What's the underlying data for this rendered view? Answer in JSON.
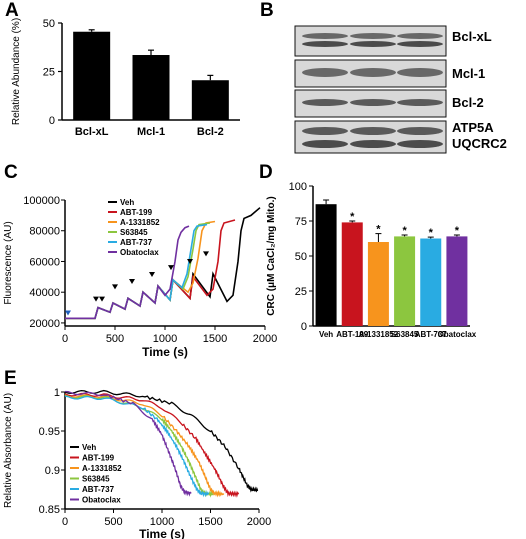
{
  "panels": {
    "a": "A",
    "b": "B",
    "c": "C",
    "d": "D",
    "e": "E"
  },
  "blot": {
    "labels": [
      "Bcl-xL",
      "Mcl-1",
      "Bcl-2",
      "ATP5A",
      "UQCRC2"
    ]
  },
  "colors": {
    "Veh": "#000000",
    "ABT-199": "#c8141e",
    "A-1331852": "#f7941d",
    "S63845": "#8cc63f",
    "ABT-737": "#29abe2",
    "Obatoclax": "#7030a0"
  },
  "chart_data": [
    {
      "id": "A",
      "type": "bar",
      "categories": [
        "Bcl-xL",
        "Mcl-1",
        "Bcl-2"
      ],
      "values": [
        45.5,
        33.5,
        20.5
      ],
      "errors": [
        1.0,
        2.5,
        2.5
      ],
      "ylabel": "Relative Abundance (%)",
      "ylim": [
        0,
        50
      ],
      "yticks": [
        0,
        25,
        50
      ]
    },
    {
      "id": "C",
      "type": "line",
      "xlabel": "Time (s)",
      "ylabel": "Fluorescence (AU)",
      "xlim": [
        0,
        2000
      ],
      "ylim": [
        18000,
        100000
      ],
      "xticks": [
        0,
        500,
        1000,
        1500,
        2000
      ],
      "yticks": [
        20000,
        40000,
        60000,
        80000,
        100000
      ],
      "series": [
        {
          "name": "Veh",
          "points": [
            [
              0,
              23000
            ],
            [
              300,
              23000
            ],
            [
              330,
              30000
            ],
            [
              450,
              27000
            ],
            [
              480,
              33000
            ],
            [
              600,
              29000
            ],
            [
              630,
              36000
            ],
            [
              750,
              31000
            ],
            [
              780,
              40000
            ],
            [
              900,
              33000
            ],
            [
              930,
              44000
            ],
            [
              1050,
              35000
            ],
            [
              1080,
              48000
            ],
            [
              1250,
              36000
            ],
            [
              1280,
              52000
            ],
            [
              1450,
              37000
            ],
            [
              1480,
              52000
            ],
            [
              1620,
              34000
            ],
            [
              1680,
              38000
            ],
            [
              1730,
              60000
            ],
            [
              1760,
              80000
            ],
            [
              1790,
              88000
            ],
            [
              1860,
              90000
            ],
            [
              1950,
              95000
            ]
          ]
        },
        {
          "name": "ABT-199",
          "points": [
            [
              0,
              23000
            ],
            [
              300,
              23000
            ],
            [
              330,
              30000
            ],
            [
              450,
              27000
            ],
            [
              480,
              33000
            ],
            [
              600,
              29000
            ],
            [
              630,
              36000
            ],
            [
              750,
              31000
            ],
            [
              780,
              40000
            ],
            [
              900,
              33000
            ],
            [
              930,
              44000
            ],
            [
              1050,
              35000
            ],
            [
              1080,
              48000
            ],
            [
              1250,
              36000
            ],
            [
              1280,
              50000
            ],
            [
              1420,
              38000
            ],
            [
              1480,
              42000
            ],
            [
              1530,
              60000
            ],
            [
              1560,
              80000
            ],
            [
              1590,
              85000
            ],
            [
              1700,
              87000
            ]
          ]
        },
        {
          "name": "A-1331852",
          "points": [
            [
              0,
              23000
            ],
            [
              300,
              23000
            ],
            [
              330,
              30000
            ],
            [
              450,
              27000
            ],
            [
              480,
              33000
            ],
            [
              600,
              29000
            ],
            [
              630,
              36000
            ],
            [
              750,
              31000
            ],
            [
              780,
              40000
            ],
            [
              900,
              33000
            ],
            [
              930,
              44000
            ],
            [
              1050,
              35000
            ],
            [
              1080,
              48000
            ],
            [
              1230,
              40000
            ],
            [
              1280,
              46000
            ],
            [
              1330,
              62000
            ],
            [
              1370,
              80000
            ],
            [
              1410,
              85000
            ],
            [
              1500,
              86000
            ]
          ]
        },
        {
          "name": "S63845",
          "points": [
            [
              0,
              23000
            ],
            [
              300,
              23000
            ],
            [
              330,
              30000
            ],
            [
              450,
              27000
            ],
            [
              480,
              33000
            ],
            [
              600,
              29000
            ],
            [
              630,
              36000
            ],
            [
              750,
              31000
            ],
            [
              780,
              40000
            ],
            [
              900,
              33000
            ],
            [
              930,
              44000
            ],
            [
              1050,
              35000
            ],
            [
              1080,
              48000
            ],
            [
              1180,
              42000
            ],
            [
              1230,
              50000
            ],
            [
              1280,
              68000
            ],
            [
              1310,
              80000
            ],
            [
              1340,
              84000
            ],
            [
              1450,
              85000
            ]
          ]
        },
        {
          "name": "ABT-737",
          "points": [
            [
              0,
              23000
            ],
            [
              300,
              23000
            ],
            [
              330,
              30000
            ],
            [
              450,
              27000
            ],
            [
              480,
              33000
            ],
            [
              600,
              29000
            ],
            [
              630,
              36000
            ],
            [
              750,
              31000
            ],
            [
              780,
              40000
            ],
            [
              900,
              33000
            ],
            [
              930,
              44000
            ],
            [
              1050,
              35000
            ],
            [
              1080,
              48000
            ],
            [
              1170,
              43000
            ],
            [
              1220,
              52000
            ],
            [
              1260,
              68000
            ],
            [
              1290,
              80000
            ],
            [
              1320,
              83000
            ],
            [
              1420,
              84000
            ]
          ]
        },
        {
          "name": "Obatoclax",
          "points": [
            [
              0,
              23000
            ],
            [
              300,
              23000
            ],
            [
              330,
              30000
            ],
            [
              450,
              27000
            ],
            [
              480,
              33000
            ],
            [
              600,
              29000
            ],
            [
              630,
              36000
            ],
            [
              750,
              31000
            ],
            [
              780,
              40000
            ],
            [
              900,
              33000
            ],
            [
              930,
              44000
            ],
            [
              1000,
              38000
            ],
            [
              1050,
              42000
            ],
            [
              1100,
              60000
            ],
            [
              1130,
              74000
            ],
            [
              1160,
              79000
            ],
            [
              1200,
              82000
            ],
            [
              1240,
              83000
            ]
          ]
        }
      ],
      "markers": {
        "blue": [
          30
        ],
        "black": [
          310,
          370,
          500,
          670,
          870,
          1060,
          1250,
          1410
        ]
      }
    },
    {
      "id": "D",
      "type": "bar",
      "categories": [
        "Veh",
        "ABT-199",
        "A-1331852",
        "S63845",
        "ABT-737",
        "Obatoclax"
      ],
      "values": [
        87,
        74,
        60,
        64,
        62.5,
        64
      ],
      "errors": [
        3,
        1,
        6,
        1,
        1,
        1
      ],
      "significant": [
        false,
        true,
        true,
        true,
        true,
        true
      ],
      "annotation": "*",
      "ylabel": "CRC (μM CaCl₂/mg Mito.)",
      "ylim": [
        0,
        100
      ],
      "yticks": [
        0,
        25,
        50,
        75,
        100
      ]
    },
    {
      "id": "E",
      "type": "line",
      "xlabel": "Time (s)",
      "ylabel": "Relative Absorbance (AU)",
      "xlim": [
        0,
        2000
      ],
      "ylim": [
        0.85,
        1.0
      ],
      "xticks": [
        0,
        500,
        1000,
        1500,
        2000
      ],
      "yticks": [
        0.85,
        0.9,
        0.95,
        1
      ],
      "series": [
        {
          "name": "Veh",
          "points": [
            [
              0,
              1.0
            ],
            [
              400,
              1.0
            ],
            [
              800,
              0.995
            ],
            [
              1100,
              0.985
            ],
            [
              1300,
              0.97
            ],
            [
              1500,
              0.95
            ],
            [
              1650,
              0.93
            ],
            [
              1800,
              0.9
            ],
            [
              1880,
              0.88
            ],
            [
              1920,
              0.875
            ],
            [
              1990,
              0.874
            ]
          ]
        },
        {
          "name": "ABT-199",
          "points": [
            [
              0,
              0.997
            ],
            [
              400,
              0.996
            ],
            [
              800,
              0.99
            ],
            [
              1000,
              0.98
            ],
            [
              1200,
              0.96
            ],
            [
              1350,
              0.94
            ],
            [
              1450,
              0.92
            ],
            [
              1550,
              0.9
            ],
            [
              1630,
              0.88
            ],
            [
              1680,
              0.87
            ],
            [
              1790,
              0.869
            ]
          ]
        },
        {
          "name": "A-1331852",
          "points": [
            [
              0,
              0.995
            ],
            [
              400,
              0.994
            ],
            [
              800,
              0.985
            ],
            [
              1000,
              0.97
            ],
            [
              1150,
              0.95
            ],
            [
              1280,
              0.93
            ],
            [
              1380,
              0.91
            ],
            [
              1450,
              0.89
            ],
            [
              1500,
              0.875
            ],
            [
              1540,
              0.87
            ],
            [
              1640,
              0.869
            ]
          ]
        },
        {
          "name": "S63845",
          "points": [
            [
              0,
              0.994
            ],
            [
              400,
              0.993
            ],
            [
              800,
              0.98
            ],
            [
              1000,
              0.965
            ],
            [
              1100,
              0.95
            ],
            [
              1200,
              0.93
            ],
            [
              1280,
              0.91
            ],
            [
              1350,
              0.89
            ],
            [
              1400,
              0.875
            ],
            [
              1440,
              0.87
            ],
            [
              1530,
              0.869
            ]
          ]
        },
        {
          "name": "ABT-737",
          "points": [
            [
              0,
              0.993
            ],
            [
              400,
              0.992
            ],
            [
              800,
              0.98
            ],
            [
              950,
              0.965
            ],
            [
              1050,
              0.95
            ],
            [
              1150,
              0.93
            ],
            [
              1230,
              0.91
            ],
            [
              1300,
              0.89
            ],
            [
              1360,
              0.875
            ],
            [
              1400,
              0.87
            ],
            [
              1480,
              0.869
            ]
          ]
        },
        {
          "name": "Obatoclax",
          "points": [
            [
              0,
              0.999
            ],
            [
              400,
              0.997
            ],
            [
              700,
              0.985
            ],
            [
              900,
              0.965
            ],
            [
              1000,
              0.945
            ],
            [
              1080,
              0.92
            ],
            [
              1140,
              0.9
            ],
            [
              1190,
              0.88
            ],
            [
              1230,
              0.872
            ],
            [
              1300,
              0.87
            ]
          ]
        }
      ]
    }
  ]
}
